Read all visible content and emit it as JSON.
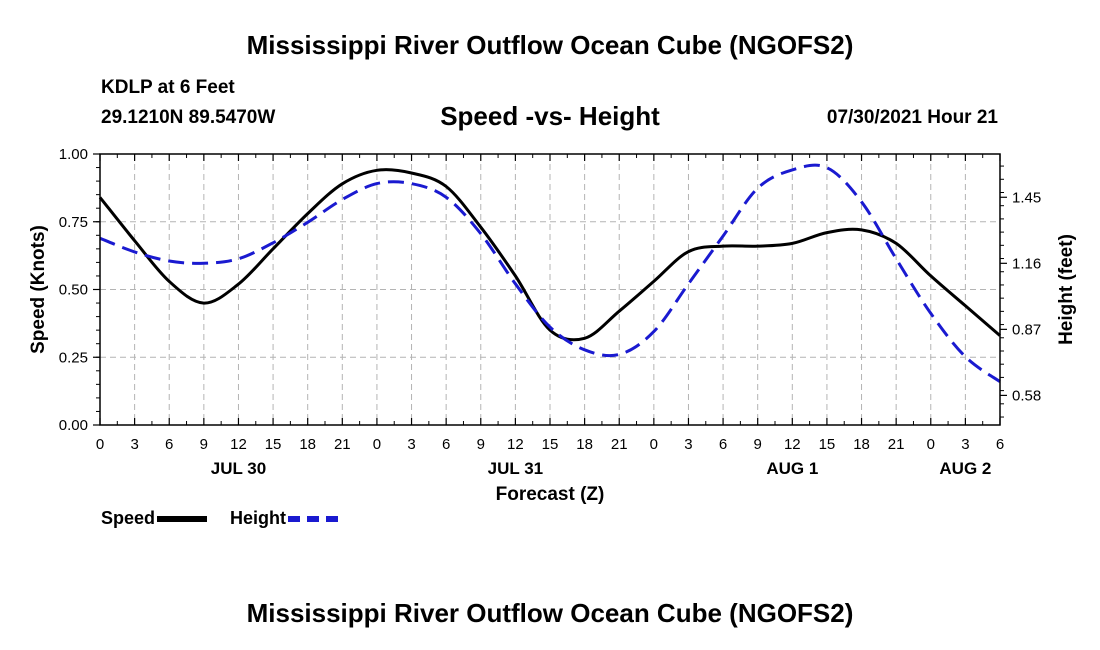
{
  "header": {
    "title": "Mississippi River Outflow Ocean Cube (NGOFS2)",
    "station": "KDLP at 6 Feet",
    "coords": "29.1210N  89.5470W",
    "subtitle": "Speed -vs- Height",
    "timestamp": "07/30/2021 Hour 21"
  },
  "footer": {
    "title": "Mississippi River Outflow Ocean Cube (NGOFS2)"
  },
  "legend": {
    "speed_label": "Speed",
    "height_label": "Height"
  },
  "colors": {
    "speed": "#000000",
    "height": "#1a1ad0",
    "grid": "#b4b4b4"
  },
  "chart_data": {
    "type": "line",
    "xlabel": "Forecast (Z)",
    "ylabel": "Speed (Knots)",
    "y2label": "Height (feet)",
    "xlim": [
      0,
      78
    ],
    "ylim": [
      0,
      1
    ],
    "y2lim": [
      0.45,
      1.64
    ],
    "x_ticks": [
      0,
      3,
      6,
      9,
      12,
      15,
      18,
      21,
      24,
      27,
      30,
      33,
      36,
      39,
      42,
      45,
      48,
      51,
      54,
      57,
      60,
      63,
      66,
      69,
      72,
      75,
      78
    ],
    "x_tick_labels": [
      "0",
      "3",
      "6",
      "9",
      "12",
      "15",
      "18",
      "21",
      "0",
      "3",
      "6",
      "9",
      "12",
      "15",
      "18",
      "21",
      "0",
      "3",
      "6",
      "9",
      "12",
      "15",
      "18",
      "21",
      "0",
      "3",
      "6"
    ],
    "date_labels": [
      {
        "x": 12,
        "label": "JUL 30"
      },
      {
        "x": 36,
        "label": "JUL 31"
      },
      {
        "x": 60,
        "label": "AUG 1"
      },
      {
        "x": 75,
        "label": "AUG 2"
      }
    ],
    "y_ticks": [
      0,
      0.25,
      0.5,
      0.75,
      1
    ],
    "y_tick_labels": [
      "0.00",
      "0.25",
      "0.50",
      "0.75",
      "1.00"
    ],
    "y2_ticks": [
      0.58,
      0.87,
      1.16,
      1.45
    ],
    "y2_tick_labels": [
      "0.58",
      "0.87",
      "1.16",
      "1.45"
    ],
    "series": [
      {
        "name": "Speed",
        "axis": "left",
        "x": [
          0,
          3,
          6,
          9,
          12,
          15,
          18,
          21,
          24,
          27,
          30,
          33,
          36,
          39,
          42,
          45,
          48,
          51,
          54,
          57,
          60,
          63,
          66,
          69,
          72,
          75,
          78
        ],
        "values": [
          0.84,
          0.68,
          0.53,
          0.45,
          0.52,
          0.65,
          0.78,
          0.89,
          0.94,
          0.93,
          0.88,
          0.73,
          0.55,
          0.35,
          0.32,
          0.42,
          0.53,
          0.64,
          0.66,
          0.66,
          0.67,
          0.71,
          0.72,
          0.67,
          0.55,
          0.44,
          0.33
        ]
      },
      {
        "name": "Height",
        "axis": "right",
        "x": [
          0,
          3,
          6,
          9,
          12,
          15,
          18,
          21,
          24,
          27,
          30,
          33,
          36,
          39,
          42,
          45,
          48,
          51,
          54,
          57,
          60,
          63,
          66,
          69,
          72,
          75,
          78
        ],
        "values": [
          1.27,
          1.21,
          1.17,
          1.16,
          1.18,
          1.25,
          1.34,
          1.44,
          1.51,
          1.51,
          1.45,
          1.29,
          1.07,
          0.88,
          0.78,
          0.76,
          0.86,
          1.07,
          1.28,
          1.49,
          1.57,
          1.58,
          1.43,
          1.18,
          0.94,
          0.75,
          0.64
        ]
      }
    ]
  }
}
